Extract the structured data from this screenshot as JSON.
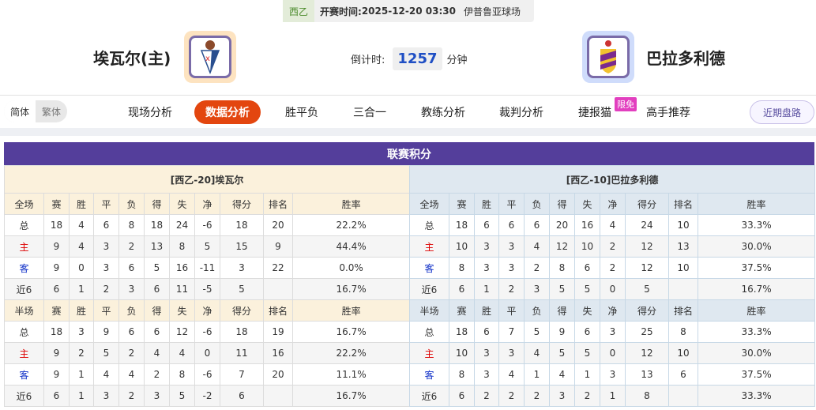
{
  "match": {
    "league": "西乙",
    "time_label": "开赛时间:",
    "time": "2025-12-20 03:30",
    "venue": "伊普鲁亚球场",
    "home_team": "埃瓦尔(主)",
    "away_team": "巴拉多利德",
    "countdown_label": "倒计时:",
    "countdown": "1257",
    "countdown_unit": "分钟"
  },
  "nav": {
    "lang": [
      "简体",
      "繁体"
    ],
    "tabs": [
      "现场分析",
      "数据分析",
      "胜平负",
      "三合一",
      "教练分析",
      "裁判分析",
      "捷报猫",
      "高手推荐"
    ],
    "active": 1,
    "badge": "限免",
    "recent": "近期盘路"
  },
  "standings": {
    "title": "联赛积分",
    "columns": [
      "赛",
      "胜",
      "平",
      "负",
      "得",
      "失",
      "净",
      "得分",
      "排名",
      "胜率"
    ],
    "sections": [
      "全场",
      "半场"
    ],
    "teams": [
      {
        "label": "[西乙-20]埃瓦尔",
        "full": [
          [
            "总",
            "18",
            "4",
            "6",
            "8",
            "18",
            "24",
            "-6",
            "18",
            "20",
            "22.2%"
          ],
          [
            "主",
            "9",
            "4",
            "3",
            "2",
            "13",
            "8",
            "5",
            "15",
            "9",
            "44.4%"
          ],
          [
            "客",
            "9",
            "0",
            "3",
            "6",
            "5",
            "16",
            "-11",
            "3",
            "22",
            "0.0%"
          ],
          [
            "近6",
            "6",
            "1",
            "2",
            "3",
            "6",
            "11",
            "-5",
            "5",
            "",
            "16.7%"
          ]
        ],
        "half": [
          [
            "总",
            "18",
            "3",
            "9",
            "6",
            "6",
            "12",
            "-6",
            "18",
            "19",
            "16.7%"
          ],
          [
            "主",
            "9",
            "2",
            "5",
            "2",
            "4",
            "4",
            "0",
            "11",
            "16",
            "22.2%"
          ],
          [
            "客",
            "9",
            "1",
            "4",
            "4",
            "2",
            "8",
            "-6",
            "7",
            "20",
            "11.1%"
          ],
          [
            "近6",
            "6",
            "1",
            "3",
            "2",
            "3",
            "5",
            "-2",
            "6",
            "",
            "16.7%"
          ]
        ]
      },
      {
        "label": "[西乙-10]巴拉多利德",
        "full": [
          [
            "总",
            "18",
            "6",
            "6",
            "6",
            "20",
            "16",
            "4",
            "24",
            "10",
            "33.3%"
          ],
          [
            "主",
            "10",
            "3",
            "3",
            "4",
            "12",
            "10",
            "2",
            "12",
            "13",
            "30.0%"
          ],
          [
            "客",
            "8",
            "3",
            "3",
            "2",
            "8",
            "6",
            "2",
            "12",
            "10",
            "37.5%"
          ],
          [
            "近6",
            "6",
            "1",
            "2",
            "3",
            "5",
            "5",
            "0",
            "5",
            "",
            "16.7%"
          ]
        ],
        "half": [
          [
            "总",
            "18",
            "6",
            "7",
            "5",
            "9",
            "6",
            "3",
            "25",
            "8",
            "33.3%"
          ],
          [
            "主",
            "10",
            "3",
            "3",
            "4",
            "5",
            "5",
            "0",
            "12",
            "10",
            "30.0%"
          ],
          [
            "客",
            "8",
            "3",
            "4",
            "1",
            "4",
            "1",
            "3",
            "13",
            "6",
            "37.5%"
          ],
          [
            "近6",
            "6",
            "2",
            "2",
            "2",
            "3",
            "2",
            "1",
            "8",
            "",
            "33.3%"
          ]
        ]
      }
    ]
  },
  "colors": {
    "header": "#543e9b",
    "active_tab": "#e3460f",
    "home": "#dd0000",
    "away": "#1030c8"
  }
}
